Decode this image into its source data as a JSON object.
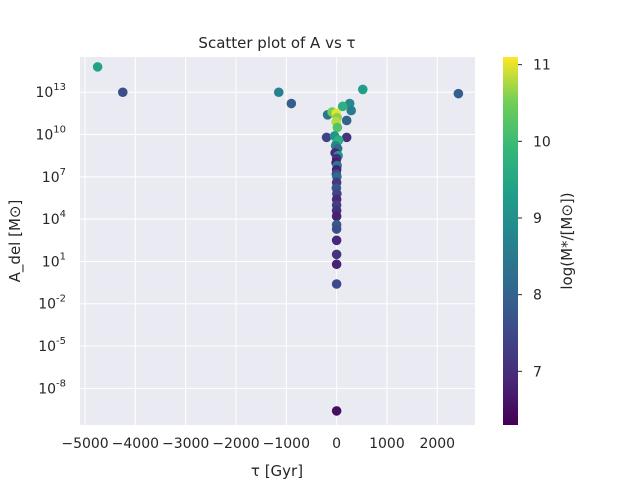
{
  "chart_data": {
    "type": "scatter",
    "title": "Scatter plot of A vs τ",
    "xlabel": "τ [Gyr]",
    "ylabel": "A_del [M⊙]",
    "colorbar_label": "log(M*/[M⊙])",
    "x_scale": "linear",
    "y_scale": "log",
    "xlim": [
      -5100,
      2750
    ],
    "ylim_exponent": [
      -10.6,
      15.5
    ],
    "x_ticks": [
      -5000,
      -4000,
      -3000,
      -2000,
      -1000,
      0,
      1000,
      2000
    ],
    "x_tick_labels": [
      "−5000",
      "−4000",
      "−3000",
      "−2000",
      "−1000",
      "0",
      "1000",
      "2000"
    ],
    "y_tick_exponents": [
      -8,
      -5,
      -2,
      1,
      4,
      7,
      10,
      13
    ],
    "y_tick_labels": [
      "-8",
      "-5",
      "-2",
      "1",
      "4",
      "7",
      "10",
      "13"
    ],
    "colorbar_range": [
      6.3,
      11.1
    ],
    "colorbar_ticks": [
      7,
      8,
      9,
      10,
      11
    ],
    "colormap": "viridis",
    "grid": true,
    "points": [
      {
        "x": -4750,
        "y_exp": 14.8,
        "c": 9.4
      },
      {
        "x": -4250,
        "y_exp": 13.0,
        "c": 7.6
      },
      {
        "x": -1150,
        "y_exp": 13.0,
        "c": 8.7
      },
      {
        "x": -900,
        "y_exp": 12.2,
        "c": 7.9
      },
      {
        "x": 2420,
        "y_exp": 12.9,
        "c": 7.9
      },
      {
        "x": 520,
        "y_exp": 13.2,
        "c": 9.3
      },
      {
        "x": 260,
        "y_exp": 12.2,
        "c": 8.9
      },
      {
        "x": 290,
        "y_exp": 11.7,
        "c": 8.6
      },
      {
        "x": 120,
        "y_exp": 12.0,
        "c": 9.7
      },
      {
        "x": -180,
        "y_exp": 11.4,
        "c": 8.4
      },
      {
        "x": -90,
        "y_exp": 11.6,
        "c": 10.5
      },
      {
        "x": 200,
        "y_exp": 11.0,
        "c": 8.0
      },
      {
        "x": -10,
        "y_exp": 11.5,
        "c": 11.0
      },
      {
        "x": 10,
        "y_exp": 11.2,
        "c": 10.6
      },
      {
        "x": -10,
        "y_exp": 10.9,
        "c": 10.8
      },
      {
        "x": 15,
        "y_exp": 10.5,
        "c": 10.2
      },
      {
        "x": -200,
        "y_exp": 9.8,
        "c": 7.4
      },
      {
        "x": 200,
        "y_exp": 9.8,
        "c": 7.1
      },
      {
        "x": -40,
        "y_exp": 9.9,
        "c": 9.1
      },
      {
        "x": 40,
        "y_exp": 9.6,
        "c": 9.6
      },
      {
        "x": 0,
        "y_exp": 9.4,
        "c": 9.8
      },
      {
        "x": -20,
        "y_exp": 9.2,
        "c": 8.8
      },
      {
        "x": 20,
        "y_exp": 9.0,
        "c": 8.2
      },
      {
        "x": -30,
        "y_exp": 8.7,
        "c": 6.9
      },
      {
        "x": 30,
        "y_exp": 8.5,
        "c": 9.2
      },
      {
        "x": 0,
        "y_exp": 8.3,
        "c": 7.0
      },
      {
        "x": -10,
        "y_exp": 8.0,
        "c": 6.7
      },
      {
        "x": 10,
        "y_exp": 7.8,
        "c": 8.5
      },
      {
        "x": 0,
        "y_exp": 7.5,
        "c": 6.8
      },
      {
        "x": -5,
        "y_exp": 7.2,
        "c": 7.5
      },
      {
        "x": 5,
        "y_exp": 7.0,
        "c": 8.1
      },
      {
        "x": 0,
        "y_exp": 6.6,
        "c": 7.2
      },
      {
        "x": -5,
        "y_exp": 6.2,
        "c": 7.7
      },
      {
        "x": 5,
        "y_exp": 5.8,
        "c": 7.4
      },
      {
        "x": 0,
        "y_exp": 5.4,
        "c": 6.9
      },
      {
        "x": 0,
        "y_exp": 5.0,
        "c": 7.3
      },
      {
        "x": 0,
        "y_exp": 4.6,
        "c": 7.0
      },
      {
        "x": 0,
        "y_exp": 4.2,
        "c": 6.8
      },
      {
        "x": 0,
        "y_exp": 3.6,
        "c": 7.8
      },
      {
        "x": 0,
        "y_exp": 3.3,
        "c": 7.6
      },
      {
        "x": 0,
        "y_exp": 2.5,
        "c": 6.9
      },
      {
        "x": 0,
        "y_exp": 1.5,
        "c": 7.1
      },
      {
        "x": 0,
        "y_exp": 0.8,
        "c": 6.8
      },
      {
        "x": 0,
        "y_exp": -0.6,
        "c": 7.5
      },
      {
        "x": 0,
        "y_exp": -9.6,
        "c": 6.5
      }
    ]
  }
}
